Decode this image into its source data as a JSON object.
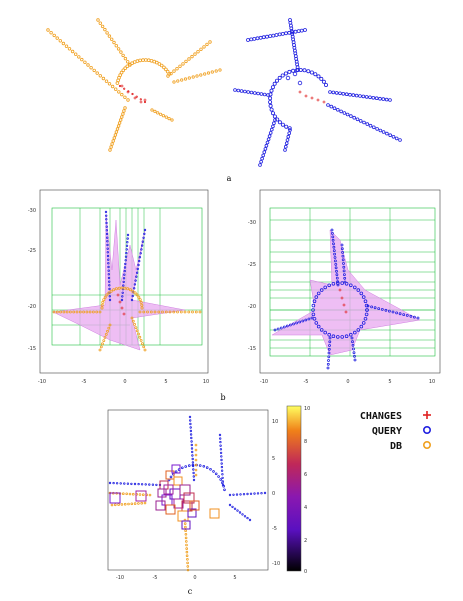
{
  "captions": {
    "a": "a",
    "b": "b",
    "c": "c"
  },
  "colors": {
    "db": "#f0a020",
    "query": "#2020e0",
    "changes": "#e02020",
    "grid_lines": "#22c040",
    "hull_fill": "#e8a8f0"
  },
  "panel_b": {
    "left": {
      "y_ticks": [
        "-30",
        "-25",
        "-20",
        "-15"
      ],
      "x_ticks": [
        "-10",
        "-5",
        "0",
        "5",
        "10"
      ]
    },
    "right": {
      "y_ticks": [
        "-30",
        "-25",
        "-20",
        "-15"
      ],
      "x_ticks": [
        "-10",
        "-5",
        "0",
        "5",
        "10"
      ]
    }
  },
  "panel_c": {
    "x_ticks": [
      "-10",
      "-5",
      "0",
      "5"
    ],
    "y_ticks": [
      "10",
      "5",
      "0",
      "-5",
      "-10"
    ],
    "colorbar_ticks": [
      "10",
      "8",
      "6",
      "4",
      "2",
      "0"
    ],
    "legend": [
      {
        "label": "CHANGES",
        "marker": "+",
        "color": "#e02020"
      },
      {
        "label": "QUERY",
        "marker": "o",
        "color": "#2020e0"
      },
      {
        "label": "DB",
        "marker": "o",
        "color": "#f0a020"
      }
    ]
  }
}
